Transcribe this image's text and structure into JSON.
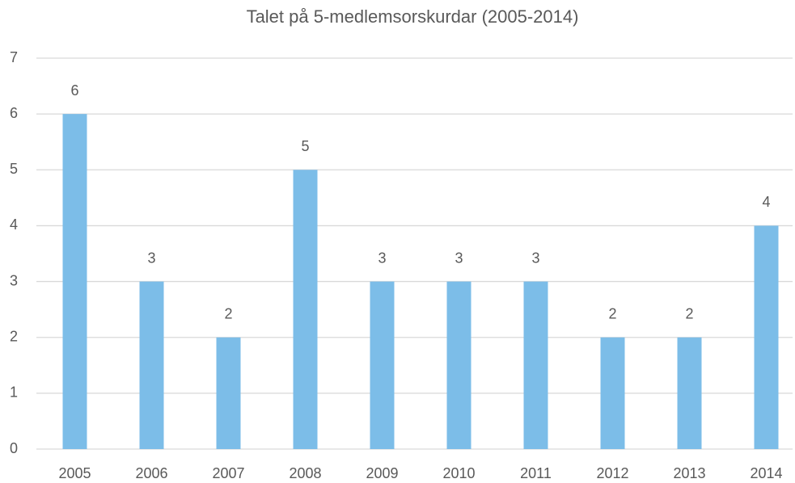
{
  "chart_data": {
    "type": "bar",
    "title": "Talet på 5-medlemsorskurdar (2005-2014)",
    "categories": [
      "2005",
      "2006",
      "2007",
      "2008",
      "2009",
      "2010",
      "2011",
      "2012",
      "2013",
      "2014"
    ],
    "values": [
      6,
      3,
      2,
      5,
      3,
      3,
      3,
      2,
      2,
      4
    ],
    "color": "#7cbde8",
    "ylim": [
      0,
      7
    ],
    "yticks": [
      0,
      1,
      2,
      3,
      4,
      5,
      6,
      7
    ],
    "grid": true
  }
}
